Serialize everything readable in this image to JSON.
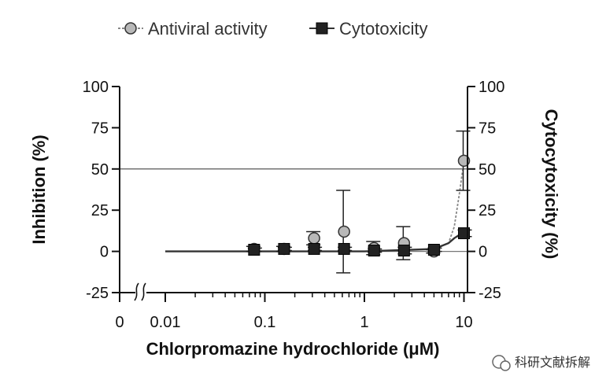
{
  "chart_data": {
    "type": "scatter",
    "xlabel": "Chlorpromazine hydrochloride (μM)",
    "ylabel_left": "Inhibition (%)",
    "ylabel_right": "Cytocytoxicity (%)",
    "x_scale": "log",
    "x_ticks": [
      "0",
      "0.01",
      "0.1",
      "1",
      "10"
    ],
    "ylim": [
      -25,
      100
    ],
    "y_ticks": [
      "100",
      "75",
      "50",
      "25",
      "0",
      "-25"
    ],
    "y2_ticks": [
      "100",
      "75",
      "50",
      "25",
      "0",
      "-25"
    ],
    "reference_line_y": 50,
    "legend_position": "top",
    "series": [
      {
        "name": "Antiviral activity",
        "marker": "circle",
        "color": "#9a9a9a",
        "points": [
          {
            "x": 0.078,
            "y": 1.5,
            "err": 1.5
          },
          {
            "x": 0.156,
            "y": 1.5,
            "err": 1.5
          },
          {
            "x": 0.3125,
            "y": 8,
            "err": 4
          },
          {
            "x": 0.625,
            "y": 12,
            "err": 25
          },
          {
            "x": 1.25,
            "y": 2,
            "err": 4
          },
          {
            "x": 2.5,
            "y": 5,
            "err": 10
          },
          {
            "x": 5,
            "y": 0,
            "err": 1
          },
          {
            "x": 10,
            "y": 55,
            "err": 18
          }
        ]
      },
      {
        "name": "Cytotoxicity",
        "marker": "square",
        "color": "#222222",
        "points": [
          {
            "x": 0.078,
            "y": 1,
            "err": 1
          },
          {
            "x": 0.156,
            "y": 1.5,
            "err": 1
          },
          {
            "x": 0.3125,
            "y": 1.5,
            "err": 1
          },
          {
            "x": 0.625,
            "y": 1.5,
            "err": 1
          },
          {
            "x": 1.25,
            "y": 0.5,
            "err": 1
          },
          {
            "x": 2.5,
            "y": 0.5,
            "err": 2
          },
          {
            "x": 5,
            "y": 1,
            "err": 1
          },
          {
            "x": 10,
            "y": 11,
            "err": 2
          }
        ]
      }
    ],
    "fit_curves": [
      {
        "series": "Antiviral activity",
        "x": [
          0.01,
          0.1,
          1,
          5,
          7,
          8,
          9,
          10
        ],
        "y": [
          0,
          0,
          0,
          1.5,
          5,
          15,
          35,
          55
        ]
      },
      {
        "series": "Cytotoxicity",
        "x": [
          0.01,
          0.1,
          1,
          5,
          7,
          8,
          9,
          10
        ],
        "y": [
          0,
          0,
          0,
          1.5,
          5,
          8,
          10,
          11
        ]
      }
    ]
  },
  "watermark": {
    "text": "科研文献拆解"
  }
}
